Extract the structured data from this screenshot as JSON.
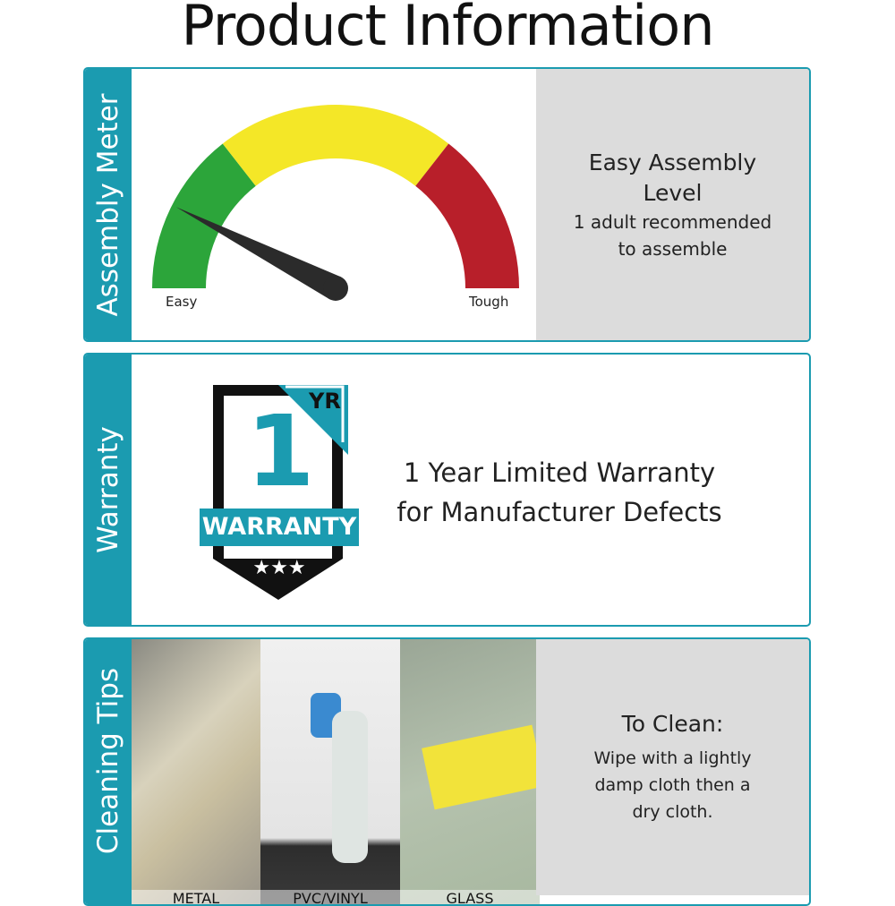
{
  "title": "Product Information",
  "colors": {
    "accent": "#1b9bb0",
    "green": "#2ca53a",
    "yellow": "#f4e727",
    "red": "#b81f2a"
  },
  "assembly": {
    "side_label": "Assembly Meter",
    "gauge_value": 0.15,
    "easy_label": "Easy",
    "tough_label": "Tough",
    "heading": "Easy Assembly Level",
    "detail": "1 adult recommended to assemble"
  },
  "warranty": {
    "side_label": "Warranty",
    "badge_number": "1",
    "badge_unit": "YR",
    "badge_word": "WARRANTY",
    "badge_stars": "★★★",
    "text_line1": "1 Year Limited Warranty",
    "text_line2": "for Manufacturer Defects"
  },
  "cleaning": {
    "side_label": "Cleaning Tips",
    "photos": [
      {
        "label": "METAL"
      },
      {
        "label": "PVC/VINYL"
      },
      {
        "label": "GLASS"
      }
    ],
    "heading": "To Clean:",
    "detail": "Wipe with a lightly damp cloth then a dry cloth."
  }
}
